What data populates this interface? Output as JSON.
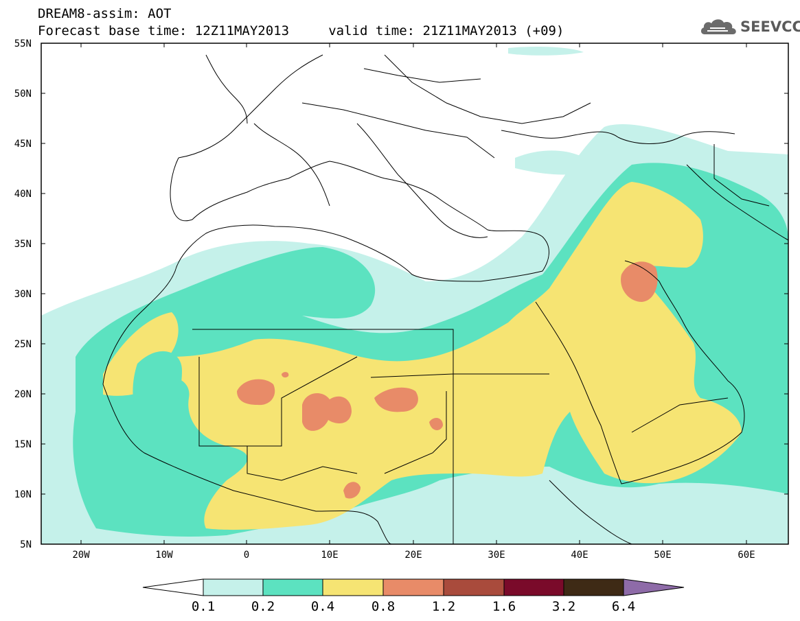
{
  "header": {
    "line1": "DREAM8-assim: AOT",
    "line2": "Forecast base time: 12Z11MAY2013     valid time: 21Z11MAY2013 (+09)"
  },
  "logo": {
    "text": "SEEVCCC",
    "icon": "cloud-icon"
  },
  "axes": {
    "lat_labels": [
      "55N",
      "50N",
      "45N",
      "40N",
      "35N",
      "30N",
      "25N",
      "20N",
      "15N",
      "10N",
      "5N"
    ],
    "lon_labels": [
      "20W",
      "10W",
      "0",
      "10E",
      "20E",
      "30E",
      "40E",
      "50E",
      "60E"
    ],
    "lat_range": [
      5,
      55
    ],
    "lon_range": [
      -25,
      65
    ]
  },
  "legend": {
    "labels": [
      "0.1",
      "0.2",
      "0.4",
      "0.8",
      "1.2",
      "1.6",
      "3.2",
      "6.4"
    ],
    "colors": [
      "#ffffff",
      "#c5f1ea",
      "#5ce2c0",
      "#f6e473",
      "#e88b68",
      "#a94b3c",
      "#7a0a2a",
      "#3e2a15",
      "#8e6ba8"
    ]
  },
  "colors": {
    "aot_0_1_0_2": "#c5f1ea",
    "aot_0_2_0_4": "#5ce2c0",
    "aot_0_4_0_8": "#f6e473",
    "aot_0_8_1_2": "#e88b68",
    "aot_1_2_1_6": "#a94b3c"
  }
}
